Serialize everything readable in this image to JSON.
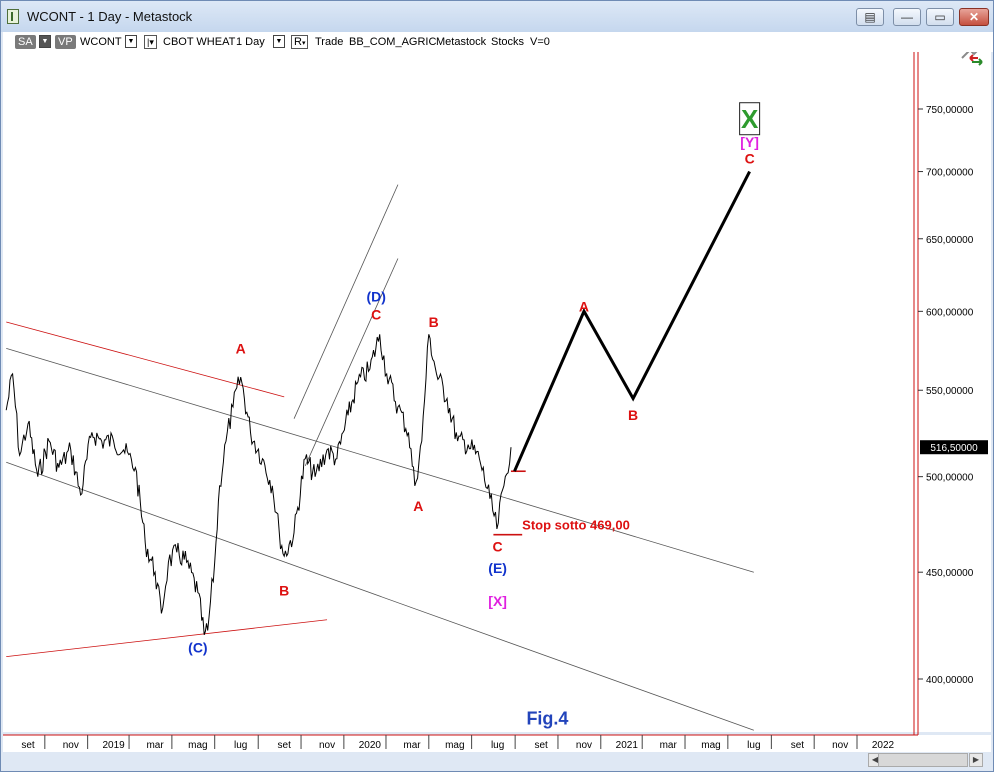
{
  "window": {
    "title": "WCONT - 1 Day - Metastock"
  },
  "toolbar": {
    "sa": "SA",
    "vp": "VP",
    "symbol": "WCONT",
    "name": "CBOT WHEAT",
    "period": "1 Day",
    "r": "R",
    "trade": "Trade",
    "sector": "BB_COM_AGRIC",
    "source": "Metastock",
    "type": "Stocks",
    "volume": "V=0"
  },
  "chart_data": {
    "type": "line",
    "title": "",
    "xlabel": "",
    "ylabel": "",
    "ylim": [
      370,
      790
    ],
    "y_ticks": [
      "750,00000",
      "700,00000",
      "650,00000",
      "600,00000",
      "550,00000",
      "500,00000",
      "450,00000",
      "400,00000"
    ],
    "y_tick_values": [
      750,
      700,
      650,
      600,
      550,
      500,
      450,
      400
    ],
    "last_price_label": "516,50000",
    "last_price": 516.5,
    "x_ticks": [
      "set",
      "nov",
      "2019",
      "mar",
      "mag",
      "lug",
      "set",
      "nov",
      "2020",
      "mar",
      "mag",
      "lug",
      "set",
      "nov",
      "2021",
      "mar",
      "mag",
      "lug",
      "set",
      "nov",
      "2022"
    ],
    "x_tick_dates": [
      "2018-09",
      "2018-11",
      "2019-01",
      "2019-03",
      "2019-05",
      "2019-07",
      "2019-09",
      "2019-11",
      "2020-01",
      "2020-03",
      "2020-05",
      "2020-07",
      "2020-09",
      "2020-11",
      "2021-01",
      "2021-03",
      "2021-05",
      "2021-07",
      "2021-09",
      "2021-11",
      "2022-01"
    ],
    "x_tick_year_marks": [
      "2019",
      "2020",
      "2021",
      "2022"
    ],
    "series": [
      {
        "values": [
          [
            "2018-08-01",
            538
          ],
          [
            "2018-08-10",
            560
          ],
          [
            "2018-08-20",
            512
          ],
          [
            "2018-09-01",
            530
          ],
          [
            "2018-09-15",
            500
          ],
          [
            "2018-10-01",
            520
          ],
          [
            "2018-10-15",
            505
          ],
          [
            "2018-11-01",
            515
          ],
          [
            "2018-11-15",
            490
          ],
          [
            "2018-12-01",
            525
          ],
          [
            "2018-12-15",
            520
          ],
          [
            "2019-01-01",
            520
          ],
          [
            "2019-01-15",
            515
          ],
          [
            "2019-02-01",
            505
          ],
          [
            "2019-02-15",
            465
          ],
          [
            "2019-03-01",
            450
          ],
          [
            "2019-03-10",
            430
          ],
          [
            "2019-03-20",
            455
          ],
          [
            "2019-04-01",
            460
          ],
          [
            "2019-04-15",
            455
          ],
          [
            "2019-05-01",
            440
          ],
          [
            "2019-05-10",
            420
          ],
          [
            "2019-05-15",
            422
          ],
          [
            "2019-05-25",
            455
          ],
          [
            "2019-06-01",
            495
          ],
          [
            "2019-06-10",
            520
          ],
          [
            "2019-06-20",
            540
          ],
          [
            "2019-07-01",
            558
          ],
          [
            "2019-07-15",
            525
          ],
          [
            "2019-08-01",
            510
          ],
          [
            "2019-08-15",
            495
          ],
          [
            "2019-08-25",
            470
          ],
          [
            "2019-09-01",
            458
          ],
          [
            "2019-09-15",
            470
          ],
          [
            "2019-10-01",
            510
          ],
          [
            "2019-10-15",
            500
          ],
          [
            "2019-11-01",
            515
          ],
          [
            "2019-11-15",
            510
          ],
          [
            "2019-12-01",
            535
          ],
          [
            "2019-12-15",
            555
          ],
          [
            "2020-01-01",
            563
          ],
          [
            "2020-01-15",
            585
          ],
          [
            "2020-01-25",
            560
          ],
          [
            "2020-02-10",
            540
          ],
          [
            "2020-02-25",
            525
          ],
          [
            "2020-03-05",
            495
          ],
          [
            "2020-03-15",
            520
          ],
          [
            "2020-03-25",
            585
          ],
          [
            "2020-04-05",
            560
          ],
          [
            "2020-04-20",
            545
          ],
          [
            "2020-05-05",
            520
          ],
          [
            "2020-05-20",
            518
          ],
          [
            "2020-06-05",
            510
          ],
          [
            "2020-06-20",
            488
          ],
          [
            "2020-06-30",
            472
          ],
          [
            "2020-07-10",
            495
          ],
          [
            "2020-07-20",
            516.5
          ]
        ]
      },
      {
        "values": [
          [
            "2020-07-25",
            503
          ],
          [
            "2020-11-01",
            600
          ],
          [
            "2021-01-10",
            545
          ],
          [
            "2021-06-25",
            700
          ]
        ]
      }
    ],
    "trendlines": [
      {
        "color": "#cc1111",
        "points": [
          [
            "2018-08-01",
            593
          ],
          [
            "2019-09-01",
            546
          ]
        ]
      },
      {
        "color": "#cc1111",
        "points": [
          [
            "2018-08-01",
            410
          ],
          [
            "2019-11-01",
            427
          ]
        ]
      },
      {
        "color": "#555555",
        "points": [
          [
            "2018-08-01",
            576
          ],
          [
            "2021-07-01",
            450
          ]
        ]
      },
      {
        "color": "#555555",
        "points": [
          [
            "2018-08-01",
            508
          ],
          [
            "2021-07-01",
            378
          ]
        ]
      },
      {
        "color": "#555555",
        "points": [
          [
            "2019-09-15",
            533
          ],
          [
            "2020-02-10",
            690
          ]
        ]
      },
      {
        "color": "#555555",
        "points": [
          [
            "2019-10-01",
            506
          ],
          [
            "2020-02-10",
            636
          ]
        ]
      }
    ],
    "stop_lines": [
      {
        "color": "#cc1111",
        "y": 503,
        "x": [
          "2020-07-20",
          "2020-08-10"
        ]
      },
      {
        "color": "#cc1111",
        "y": 469,
        "x": [
          "2020-06-25",
          "2020-08-05"
        ]
      }
    ],
    "annotations": [
      {
        "text": "A",
        "x": "2019-07-01",
        "y": 576,
        "color": "#dd1111"
      },
      {
        "text": "B",
        "x": "2019-09-01",
        "y": 441,
        "color": "#dd1111"
      },
      {
        "text": "(C)",
        "x": "2019-05-01",
        "y": 414,
        "color": "#1133cc"
      },
      {
        "text": "(D)",
        "x": "2020-01-10",
        "y": 610,
        "color": "#1133cc"
      },
      {
        "text": "C",
        "x": "2020-01-10",
        "y": 598,
        "color": "#dd1111"
      },
      {
        "text": "B",
        "x": "2020-04-01",
        "y": 593,
        "color": "#dd1111"
      },
      {
        "text": "A",
        "x": "2020-03-10",
        "y": 484,
        "color": "#dd1111"
      },
      {
        "text": "C",
        "x": "2020-07-01",
        "y": 463,
        "color": "#dd1111"
      },
      {
        "text": "(E)",
        "x": "2020-07-01",
        "y": 452,
        "color": "#1133cc"
      },
      {
        "text": "[X]",
        "x": "2020-07-01",
        "y": 436,
        "color": "#e020e0"
      },
      {
        "text": "Stop sotto 469,00",
        "x": "2020-08-05",
        "y": 474,
        "color": "#dd1111"
      },
      {
        "text": "A",
        "x": "2020-11-01",
        "y": 603,
        "color": "#dd1111"
      },
      {
        "text": "B",
        "x": "2021-01-10",
        "y": 535,
        "color": "#dd1111"
      },
      {
        "text": "C",
        "x": "2021-06-25",
        "y": 710,
        "color": "#dd1111"
      },
      {
        "text": "[Y]",
        "x": "2021-06-25",
        "y": 723,
        "color": "#e020e0"
      },
      {
        "text": "X",
        "x": "2021-06-25",
        "y": 742,
        "color": "#2e9b2e"
      },
      {
        "text": "Fig.4",
        "x": "2020-09-10",
        "y": 383,
        "color": "#2244bb"
      }
    ],
    "grid": false,
    "colors": {
      "price": "#000000",
      "projection": "#000000",
      "background": "#ffffff"
    }
  }
}
